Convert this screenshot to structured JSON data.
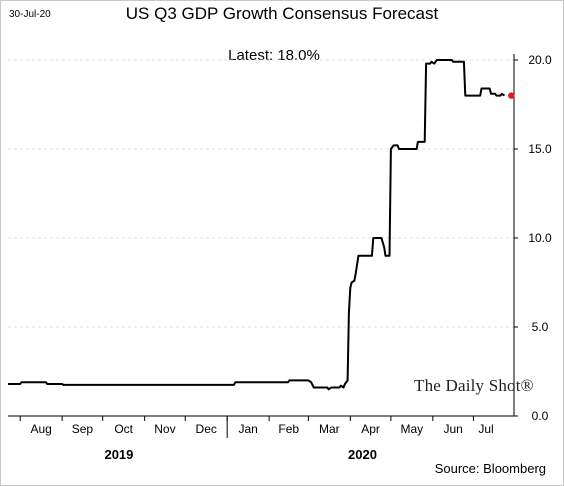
{
  "header": {
    "date_stamp": "30-Jul-20",
    "title": "US Q3 GDP Growth Consensus Forecast"
  },
  "annotation": {
    "latest": "Latest:  18.0%"
  },
  "footer": {
    "source": "Source: Bloomberg",
    "watermark": "The Daily Shot®"
  },
  "colors": {
    "line": "#000000",
    "latest_marker": "#e8161b",
    "grid": "#dcdce8",
    "axis": "#000000"
  },
  "chart_data": {
    "type": "line",
    "title": "US Q3 GDP Growth Consensus Forecast",
    "xlabel": "",
    "ylabel": "",
    "ylim": [
      0,
      20.0
    ],
    "yticks": [
      "0.0",
      "5.0",
      "10.0",
      "15.0",
      "20.0"
    ],
    "y_axis_side": "right",
    "grid": "horizontal dashed",
    "x_range": [
      "2019-07-23",
      "2020-07-31"
    ],
    "months": [
      {
        "label": "Aug",
        "start": "2019-08-01"
      },
      {
        "label": "Sep",
        "start": "2019-09-01"
      },
      {
        "label": "Oct",
        "start": "2019-10-01"
      },
      {
        "label": "Nov",
        "start": "2019-11-01"
      },
      {
        "label": "Dec",
        "start": "2019-12-01"
      },
      {
        "label": "Jan",
        "start": "2020-01-01"
      },
      {
        "label": "Feb",
        "start": "2020-02-01"
      },
      {
        "label": "Mar",
        "start": "2020-03-01"
      },
      {
        "label": "Apr",
        "start": "2020-04-01"
      },
      {
        "label": "May",
        "start": "2020-05-01"
      },
      {
        "label": "Jun",
        "start": "2020-06-01"
      },
      {
        "label": "Jul",
        "start": "2020-07-01"
      }
    ],
    "years": [
      {
        "label": "2019",
        "center": "2019-10-13"
      },
      {
        "label": "2020",
        "center": "2020-04-10"
      }
    ],
    "month_end_marker": "2020-08-01",
    "series": [
      {
        "points": [
          [
            "2019-07-23",
            1.8
          ],
          [
            "2019-08-01",
            1.8
          ],
          [
            "2019-08-02",
            1.9
          ],
          [
            "2019-08-20",
            1.9
          ],
          [
            "2019-08-21",
            1.8
          ],
          [
            "2019-09-01",
            1.8
          ],
          [
            "2019-09-02",
            1.75
          ],
          [
            "2019-10-01",
            1.75
          ],
          [
            "2019-11-01",
            1.75
          ],
          [
            "2019-12-01",
            1.75
          ],
          [
            "2020-01-06",
            1.75
          ],
          [
            "2020-01-07",
            1.9
          ],
          [
            "2020-01-20",
            1.9
          ],
          [
            "2020-02-01",
            1.9
          ],
          [
            "2020-02-15",
            1.9
          ],
          [
            "2020-02-16",
            2.0
          ],
          [
            "2020-03-01",
            2.0
          ],
          [
            "2020-03-03",
            1.9
          ],
          [
            "2020-03-05",
            1.6
          ],
          [
            "2020-03-15",
            1.6
          ],
          [
            "2020-03-16",
            1.5
          ],
          [
            "2020-03-18",
            1.6
          ],
          [
            "2020-03-24",
            1.6
          ],
          [
            "2020-03-25",
            1.7
          ],
          [
            "2020-03-27",
            1.6
          ],
          [
            "2020-03-28",
            1.8
          ],
          [
            "2020-03-30",
            2.0
          ],
          [
            "2020-03-31",
            5.8
          ],
          [
            "2020-04-01",
            7.2
          ],
          [
            "2020-04-02",
            7.5
          ],
          [
            "2020-04-04",
            7.6
          ],
          [
            "2020-04-05",
            8.0
          ],
          [
            "2020-04-07",
            9.0
          ],
          [
            "2020-04-17",
            9.0
          ],
          [
            "2020-04-18",
            10.0
          ],
          [
            "2020-04-24",
            10.0
          ],
          [
            "2020-04-26",
            9.5
          ],
          [
            "2020-04-27",
            9.0
          ],
          [
            "2020-04-30",
            9.0
          ],
          [
            "2020-05-01",
            15.0
          ],
          [
            "2020-05-03",
            15.2
          ],
          [
            "2020-05-06",
            15.2
          ],
          [
            "2020-05-07",
            15.0
          ],
          [
            "2020-05-20",
            15.0
          ],
          [
            "2020-05-21",
            15.4
          ],
          [
            "2020-05-26",
            15.4
          ],
          [
            "2020-05-27",
            19.8
          ],
          [
            "2020-05-30",
            19.8
          ],
          [
            "2020-05-31",
            19.9
          ],
          [
            "2020-06-02",
            19.8
          ],
          [
            "2020-06-04",
            20.0
          ],
          [
            "2020-06-15",
            20.0
          ],
          [
            "2020-06-16",
            19.9
          ],
          [
            "2020-06-24",
            19.9
          ],
          [
            "2020-06-25",
            18.0
          ],
          [
            "2020-07-06",
            18.0
          ],
          [
            "2020-07-07",
            18.4
          ],
          [
            "2020-07-13",
            18.4
          ],
          [
            "2020-07-14",
            18.1
          ],
          [
            "2020-07-17",
            18.1
          ],
          [
            "2020-07-18",
            18.0
          ],
          [
            "2020-07-21",
            18.0
          ],
          [
            "2020-07-22",
            18.1
          ],
          [
            "2020-07-24",
            18.0
          ]
        ]
      }
    ],
    "latest_point": {
      "x": "2020-07-29",
      "y": 18.0
    }
  }
}
